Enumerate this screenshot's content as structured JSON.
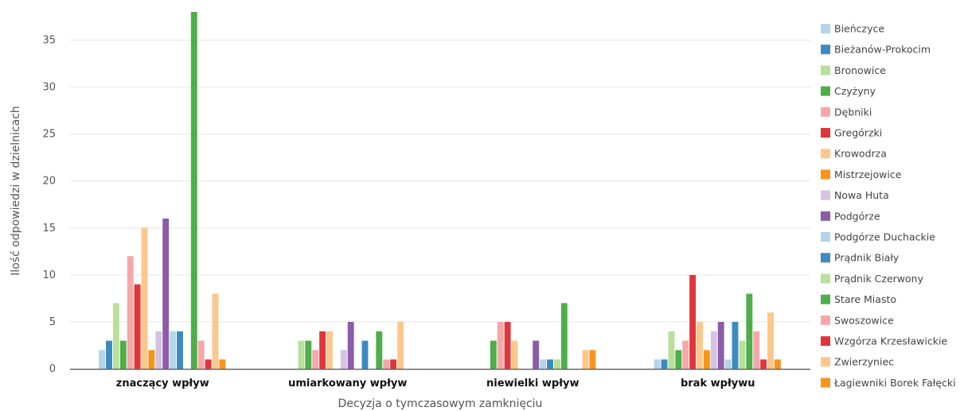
{
  "chart_data": {
    "type": "bar",
    "title": "",
    "xlabel": "Decyzja o tymczasowym zamknięciu",
    "ylabel": "Ilość odpowiedzi w dzielnicach",
    "ylim": [
      0,
      38
    ],
    "yticks": [
      0,
      5,
      10,
      15,
      20,
      25,
      30,
      35
    ],
    "grid": true,
    "legend_position": "right",
    "categories": [
      "znaczący wpływ",
      "umiarkowany wpływ",
      "niewielki wpływ",
      "brak wpływu"
    ],
    "series": [
      {
        "name": "Bieńczyce",
        "color": "#b3d5e8",
        "values": [
          2,
          0,
          0,
          1
        ]
      },
      {
        "name": "Bieżanów-Prokocim",
        "color": "#3b8bc2",
        "values": [
          3,
          0,
          0,
          1
        ]
      },
      {
        "name": "Bronowice",
        "color": "#b8e09a",
        "values": [
          7,
          3,
          0,
          4
        ]
      },
      {
        "name": "Czyżyny",
        "color": "#4fae4a",
        "values": [
          3,
          3,
          3,
          2
        ]
      },
      {
        "name": "Dębniki",
        "color": "#f6a8a8",
        "values": [
          12,
          2,
          5,
          3
        ]
      },
      {
        "name": "Gregórzki",
        "color": "#e0353b",
        "values": [
          9,
          4,
          5,
          10
        ]
      },
      {
        "name": "Krowodrza",
        "color": "#fcc88a",
        "values": [
          15,
          4,
          3,
          5
        ]
      },
      {
        "name": "Mistrzejowice",
        "color": "#f7941e",
        "values": [
          2,
          0,
          0,
          2
        ]
      },
      {
        "name": "Nowa Huta",
        "color": "#d5c3e3",
        "values": [
          4,
          2,
          0,
          4
        ]
      },
      {
        "name": "Podgórze",
        "color": "#8b5ca8",
        "values": [
          16,
          5,
          3,
          5
        ]
      },
      {
        "name": "Podgórze Duchackie",
        "color": "#b3d5e8",
        "values": [
          4,
          0,
          1,
          1
        ]
      },
      {
        "name": "Prądnik Biały",
        "color": "#3b8bc2",
        "values": [
          4,
          3,
          1,
          5
        ]
      },
      {
        "name": "Prądnik Czerwony",
        "color": "#b8e09a",
        "values": [
          0,
          0,
          1,
          3
        ]
      },
      {
        "name": "Stare Miasto",
        "color": "#4fae4a",
        "values": [
          38,
          4,
          7,
          8
        ]
      },
      {
        "name": "Swoszowice",
        "color": "#f6a8a8",
        "values": [
          3,
          1,
          0,
          4
        ]
      },
      {
        "name": "Wzgórza Krzesławickie",
        "color": "#e0353b",
        "values": [
          1,
          1,
          0,
          1
        ]
      },
      {
        "name": "Zwierzyniec",
        "color": "#fcc88a",
        "values": [
          8,
          5,
          2,
          6
        ]
      },
      {
        "name": "Łagiewniki Borek Fałęcki",
        "color": "#f7941e",
        "values": [
          1,
          0,
          2,
          1
        ]
      }
    ]
  }
}
